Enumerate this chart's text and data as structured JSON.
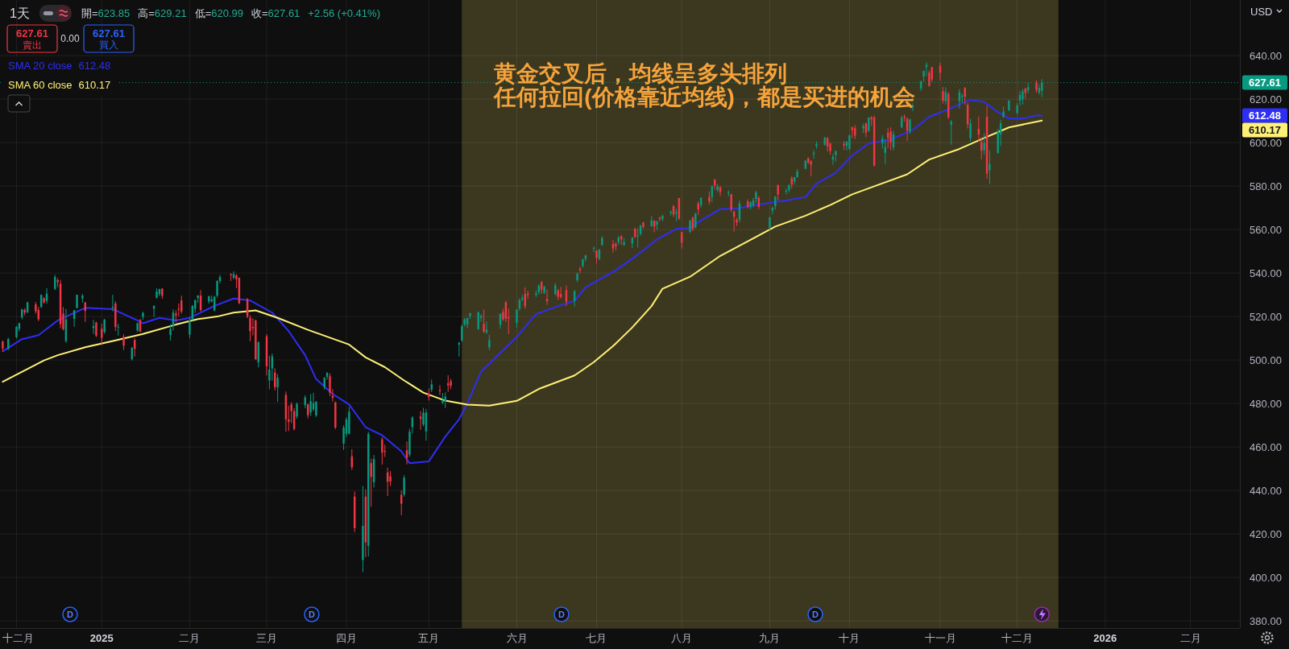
{
  "chart_data": {
    "type": "candlestick",
    "title": "1天",
    "x": [
      "2024-11-27",
      "2024-11-29",
      "2024-12-02",
      "2024-12-03",
      "2024-12-04",
      "2024-12-05",
      "2024-12-06",
      "2024-12-09",
      "2024-12-10",
      "2024-12-11",
      "2024-12-12",
      "2024-12-13",
      "2024-12-16",
      "2024-12-17",
      "2024-12-18",
      "2024-12-19",
      "2024-12-20",
      "2024-12-23",
      "2024-12-24",
      "2024-12-26",
      "2024-12-27",
      "2024-12-30",
      "2024-12-31",
      "2025-01-02",
      "2025-01-03",
      "2025-01-06",
      "2025-01-07",
      "2025-01-08",
      "2025-01-10",
      "2025-01-13",
      "2025-01-14",
      "2025-01-15",
      "2025-01-16",
      "2025-01-17",
      "2025-01-21",
      "2025-01-22",
      "2025-01-23",
      "2025-01-24",
      "2025-01-27",
      "2025-01-28",
      "2025-01-29",
      "2025-01-30",
      "2025-01-31",
      "2025-02-03",
      "2025-02-04",
      "2025-02-05",
      "2025-02-06",
      "2025-02-07",
      "2025-02-10",
      "2025-02-11",
      "2025-02-12",
      "2025-02-13",
      "2025-02-14",
      "2025-02-18",
      "2025-02-19",
      "2025-02-20",
      "2025-02-21",
      "2025-02-24",
      "2025-02-25",
      "2025-02-26",
      "2025-02-27",
      "2025-02-28",
      "2025-03-03",
      "2025-03-04",
      "2025-03-05",
      "2025-03-06",
      "2025-03-07",
      "2025-03-10",
      "2025-03-11",
      "2025-03-12",
      "2025-03-13",
      "2025-03-14",
      "2025-03-17",
      "2025-03-18",
      "2025-03-19",
      "2025-03-20",
      "2025-03-21",
      "2025-03-24",
      "2025-03-25",
      "2025-03-26",
      "2025-03-27",
      "2025-03-28",
      "2025-03-31",
      "2025-04-01",
      "2025-04-02",
      "2025-04-03",
      "2025-04-04",
      "2025-04-07",
      "2025-04-08",
      "2025-04-09",
      "2025-04-10",
      "2025-04-11",
      "2025-04-14",
      "2025-04-15",
      "2025-04-16",
      "2025-04-17",
      "2025-04-21",
      "2025-04-22",
      "2025-04-23",
      "2025-04-24",
      "2025-04-25",
      "2025-04-28",
      "2025-04-29",
      "2025-04-30",
      "2025-05-01",
      "2025-05-02",
      "2025-05-05",
      "2025-05-06",
      "2025-05-07",
      "2025-05-08",
      "2025-05-09",
      "2025-05-12",
      "2025-05-13",
      "2025-05-14",
      "2025-05-15",
      "2025-05-16",
      "2025-05-19",
      "2025-05-20",
      "2025-05-21",
      "2025-05-22",
      "2025-05-23",
      "2025-05-27",
      "2025-05-28",
      "2025-05-29",
      "2025-05-30",
      "2025-06-02",
      "2025-06-03",
      "2025-06-04",
      "2025-06-05",
      "2025-06-06",
      "2025-06-09",
      "2025-06-10",
      "2025-06-11",
      "2025-06-12",
      "2025-06-13",
      "2025-06-16",
      "2025-06-17",
      "2025-06-18",
      "2025-06-20",
      "2025-06-23",
      "2025-06-24",
      "2025-06-25",
      "2025-06-26",
      "2025-06-27",
      "2025-06-30",
      "2025-07-01",
      "2025-07-02",
      "2025-07-03",
      "2025-07-07",
      "2025-07-08",
      "2025-07-09",
      "2025-07-10",
      "2025-07-11",
      "2025-07-14",
      "2025-07-15",
      "2025-07-16",
      "2025-07-17",
      "2025-07-18",
      "2025-07-21",
      "2025-07-22",
      "2025-07-23",
      "2025-07-24",
      "2025-07-25",
      "2025-07-28",
      "2025-07-29",
      "2025-07-30",
      "2025-07-31",
      "2025-08-01",
      "2025-08-04",
      "2025-08-05",
      "2025-08-06",
      "2025-08-07",
      "2025-08-08",
      "2025-08-11",
      "2025-08-12",
      "2025-08-13",
      "2025-08-14",
      "2025-08-15",
      "2025-08-18",
      "2025-08-19",
      "2025-08-20",
      "2025-08-21",
      "2025-08-22",
      "2025-08-25",
      "2025-08-26",
      "2025-08-27",
      "2025-08-28",
      "2025-08-29",
      "2025-09-02",
      "2025-09-03",
      "2025-09-04",
      "2025-09-05",
      "2025-09-08",
      "2025-09-09",
      "2025-09-10",
      "2025-09-11",
      "2025-09-12",
      "2025-09-15",
      "2025-09-16",
      "2025-09-17",
      "2025-09-18",
      "2025-09-19",
      "2025-09-22",
      "2025-09-23",
      "2025-09-24",
      "2025-09-25",
      "2025-09-26",
      "2025-09-29",
      "2025-09-30",
      "2025-10-01",
      "2025-10-02",
      "2025-10-03",
      "2025-10-06",
      "2025-10-07",
      "2025-10-08",
      "2025-10-09",
      "2025-10-10",
      "2025-10-13",
      "2025-10-14",
      "2025-10-15",
      "2025-10-16",
      "2025-10-17",
      "2025-10-20",
      "2025-10-21",
      "2025-10-22",
      "2025-10-23",
      "2025-10-24",
      "2025-10-27",
      "2025-10-28",
      "2025-10-29",
      "2025-10-30",
      "2025-10-31",
      "2025-11-03",
      "2025-11-04",
      "2025-11-05",
      "2025-11-06",
      "2025-11-07",
      "2025-11-10",
      "2025-11-11",
      "2025-11-12",
      "2025-11-13",
      "2025-11-14",
      "2025-11-17",
      "2025-11-18",
      "2025-11-19",
      "2025-11-20",
      "2025-11-21",
      "2025-11-24",
      "2025-11-25",
      "2025-11-26",
      "2025-11-28",
      "2025-12-01",
      "2025-12-02",
      "2025-12-03",
      "2025-12-04",
      "2025-12-05",
      "2025-12-08",
      "2025-12-09",
      "2025-12-10"
    ],
    "ohlc": [
      [
        508.5,
        509.0,
        503.9,
        505.3
      ],
      [
        505.1,
        510.2,
        504.6,
        509.7
      ],
      [
        510.5,
        515.6,
        509.9,
        515.3
      ],
      [
        514.3,
        517.2,
        513.2,
        516.9
      ],
      [
        519.6,
        523.6,
        518.7,
        523.3
      ],
      [
        523.0,
        523.8,
        520.6,
        521.8
      ],
      [
        522.0,
        526.9,
        521.5,
        526.5
      ],
      [
        525.6,
        526.7,
        521.3,
        522.4
      ],
      [
        523.1,
        524.5,
        517.9,
        518.7
      ],
      [
        524.4,
        530.2,
        523.9,
        529.9
      ],
      [
        528.4,
        529.0,
        526.0,
        526.5
      ],
      [
        527.2,
        533.1,
        525.9,
        530.5
      ],
      [
        532.7,
        539.2,
        532.2,
        538.2
      ],
      [
        536.7,
        537.6,
        533.6,
        535.8
      ],
      [
        535.1,
        536.9,
        514.6,
        516.5
      ],
      [
        521.3,
        524.4,
        513.6,
        514.2
      ],
      [
        508.7,
        523.5,
        507.9,
        518.7
      ],
      [
        518.9,
        523.0,
        515.3,
        522.9
      ],
      [
        524.0,
        530.0,
        523.7,
        530.0
      ],
      [
        528.3,
        530.4,
        526.4,
        529.6
      ],
      [
        526.5,
        526.7,
        517.5,
        522.6
      ],
      [
        514.7,
        518.5,
        512.0,
        515.6
      ],
      [
        517.2,
        517.6,
        510.5,
        511.2
      ],
      [
        514.4,
        516.8,
        506.8,
        510.2
      ],
      [
        512.9,
        518.9,
        512.0,
        518.6
      ],
      [
        524.0,
        530.0,
        522.4,
        524.5
      ],
      [
        526.0,
        527.0,
        513.3,
        515.2
      ],
      [
        515.0,
        516.7,
        511.2,
        515.3
      ],
      [
        510.7,
        511.8,
        504.6,
        506.6
      ],
      [
        500.4,
        506.0,
        499.8,
        505.6
      ],
      [
        509.2,
        509.9,
        501.6,
        505.1
      ],
      [
        513.6,
        517.3,
        512.8,
        516.9
      ],
      [
        518.4,
        518.9,
        512.8,
        513.1
      ],
      [
        519.8,
        522.2,
        518.5,
        521.7
      ],
      [
        523.6,
        525.2,
        519.8,
        524.8
      ],
      [
        528.6,
        533.0,
        528.3,
        531.5
      ],
      [
        530.3,
        532.8,
        529.3,
        532.6
      ],
      [
        532.8,
        533.1,
        528.2,
        529.6
      ],
      [
        511.5,
        516.3,
        509.0,
        514.2
      ],
      [
        515.8,
        523.3,
        513.6,
        521.8
      ],
      [
        521.4,
        522.9,
        517.3,
        520.5
      ],
      [
        523.6,
        526.0,
        520.0,
        523.1
      ],
      [
        527.4,
        529.6,
        521.3,
        522.3
      ],
      [
        511.7,
        519.7,
        510.0,
        518.1
      ],
      [
        518.6,
        525.3,
        518.1,
        524.9
      ],
      [
        523.6,
        527.7,
        521.7,
        527.6
      ],
      [
        528.5,
        529.8,
        526.3,
        529.7
      ],
      [
        529.6,
        532.2,
        522.4,
        522.9
      ],
      [
        526.9,
        529.6,
        525.9,
        529.3
      ],
      [
        527.0,
        529.7,
        526.5,
        527.9
      ],
      [
        522.8,
        529.5,
        522.4,
        529.1
      ],
      [
        529.6,
        536.6,
        528.7,
        536.4
      ],
      [
        536.3,
        539.1,
        535.4,
        538.2
      ],
      [
        539.6,
        539.8,
        536.4,
        539.1
      ],
      [
        537.8,
        540.8,
        537.1,
        539.5
      ],
      [
        538.9,
        539.5,
        533.1,
        537.2
      ],
      [
        537.8,
        538.0,
        525.7,
        526.1
      ],
      [
        528.0,
        528.5,
        519.2,
        519.9
      ],
      [
        519.4,
        520.6,
        508.6,
        513.3
      ],
      [
        515.2,
        519.2,
        511.3,
        514.6
      ],
      [
        518.2,
        518.6,
        500.2,
        500.3
      ],
      [
        499.0,
        508.6,
        496.6,
        508.2
      ],
      [
        510.9,
        511.9,
        492.9,
        497.1
      ],
      [
        490.6,
        502.0,
        486.6,
        495.6
      ],
      [
        496.1,
        503.0,
        490.5,
        501.7
      ],
      [
        494.2,
        496.2,
        486.0,
        487.5
      ],
      [
        487.5,
        493.5,
        480.7,
        491.8
      ],
      [
        484.0,
        485.5,
        467.0,
        472.7
      ],
      [
        472.7,
        479.0,
        467.3,
        471.6
      ],
      [
        479.6,
        480.6,
        471.0,
        476.5
      ],
      [
        476.4,
        477.8,
        467.6,
        468.3
      ],
      [
        474.0,
        480.5,
        473.0,
        479.8
      ],
      [
        479.3,
        483.8,
        477.9,
        482.8
      ],
      [
        479.6,
        479.9,
        473.1,
        474.6
      ],
      [
        475.9,
        484.4,
        474.3,
        481.1
      ],
      [
        477.3,
        484.9,
        476.4,
        480.2
      ],
      [
        474.5,
        481.1,
        473.8,
        480.8
      ],
      [
        487.6,
        492.2,
        486.4,
        491.8
      ],
      [
        492.3,
        494.4,
        491.0,
        494.1
      ],
      [
        492.5,
        493.9,
        483.4,
        485.0
      ],
      [
        483.4,
        486.6,
        480.9,
        482.6
      ],
      [
        480.5,
        480.9,
        468.2,
        468.9
      ],
      [
        461.6,
        470.0,
        458.6,
        468.9
      ],
      [
        466.0,
        473.7,
        464.6,
        472.7
      ],
      [
        466.2,
        478.4,
        465.7,
        476.2
      ],
      [
        455.7,
        459.0,
        449.4,
        450.7
      ],
      [
        437.2,
        439.5,
        420.9,
        422.7
      ],
      [
        408.0,
        442.1,
        402.4,
        423.7
      ],
      [
        437.2,
        440.5,
        409.2,
        416.1
      ],
      [
        414.5,
        467.0,
        409.6,
        466.0
      ],
      [
        452.6,
        454.7,
        432.5,
        446.2
      ],
      [
        443.8,
        456.3,
        441.3,
        454.4
      ],
      [
        463.5,
        464.5,
        451.9,
        457.4
      ],
      [
        458.2,
        461.0,
        455.4,
        457.7
      ],
      [
        448.3,
        450.5,
        437.5,
        444.0
      ],
      [
        446.5,
        448.9,
        442.0,
        444.1
      ],
      [
        438.0,
        440.0,
        428.6,
        433.9
      ],
      [
        438.2,
        447.0,
        437.2,
        445.9
      ],
      [
        458.5,
        462.5,
        452.0,
        455.0
      ],
      [
        456.5,
        468.4,
        455.5,
        467.0
      ],
      [
        469.1,
        474.2,
        466.2,
        473.5
      ],
      [
        474.0,
        476.5,
        467.9,
        472.9
      ],
      [
        470.3,
        478.0,
        469.5,
        475.8
      ],
      [
        467.2,
        477.5,
        462.9,
        475.8
      ],
      [
        484.5,
        486.9,
        481.4,
        483.0
      ],
      [
        486.3,
        491.0,
        485.2,
        488.8
      ],
      [
        486.2,
        488.4,
        483.9,
        485.7
      ],
      [
        480.3,
        484.8,
        479.8,
        481.3
      ],
      [
        481.0,
        485.1,
        477.9,
        483.2
      ],
      [
        489.3,
        493.0,
        485.3,
        488.3
      ],
      [
        490.3,
        491.3,
        486.6,
        488.1
      ],
      [
        507.1,
        508.3,
        501.6,
        507.9
      ],
      [
        509.0,
        516.4,
        508.3,
        515.6
      ],
      [
        516.3,
        519.2,
        515.5,
        518.7
      ],
      [
        516.4,
        519.4,
        514.7,
        519.3
      ],
      [
        520.3,
        521.7,
        518.9,
        521.5
      ],
      [
        514.2,
        522.3,
        513.9,
        522.0
      ],
      [
        519.4,
        521.0,
        517.6,
        520.3
      ],
      [
        516.6,
        523.2,
        512.4,
        513.0
      ],
      [
        512.7,
        517.8,
        512.0,
        514.0
      ],
      [
        505.8,
        511.6,
        504.5,
        509.2
      ],
      [
        516.2,
        521.5,
        514.4,
        521.2
      ],
      [
        522.1,
        523.6,
        518.0,
        518.7
      ],
      [
        526.6,
        527.2,
        517.4,
        519.1
      ],
      [
        519.6,
        523.6,
        511.9,
        519.1
      ],
      [
        517.1,
        523.4,
        514.9,
        523.2
      ],
      [
        523.6,
        528.3,
        522.7,
        527.6
      ],
      [
        527.9,
        529.8,
        527.1,
        528.5
      ],
      [
        530.3,
        533.4,
        523.6,
        524.8
      ],
      [
        530.4,
        531.8,
        528.2,
        529.9
      ],
      [
        529.9,
        532.0,
        529.0,
        530.7
      ],
      [
        531.2,
        534.9,
        530.1,
        534.2
      ],
      [
        535.8,
        536.4,
        530.5,
        532.4
      ],
      [
        530.9,
        534.1,
        530.4,
        533.7
      ],
      [
        528.0,
        532.4,
        525.4,
        527.0
      ],
      [
        530.3,
        535.4,
        529.7,
        534.3
      ],
      [
        532.0,
        532.7,
        527.7,
        529.1
      ],
      [
        530.3,
        533.6,
        528.3,
        529.0
      ],
      [
        532.1,
        534.2,
        524.9,
        526.8
      ],
      [
        527.2,
        532.2,
        524.7,
        531.7
      ],
      [
        536.7,
        540.3,
        535.9,
        539.8
      ],
      [
        542.0,
        542.9,
        539.9,
        541.2
      ],
      [
        543.2,
        546.6,
        542.5,
        546.2
      ],
      [
        546.5,
        548.4,
        545.4,
        548.1
      ],
      [
        551.2,
        552.2,
        549.6,
        551.6
      ],
      [
        550.2,
        550.7,
        544.3,
        547.0
      ],
      [
        546.5,
        551.1,
        545.8,
        550.8
      ],
      [
        553.0,
        556.9,
        552.4,
        556.2
      ],
      [
        553.4,
        555.2,
        549.4,
        551.3
      ],
      [
        553.4,
        554.3,
        550.5,
        552.3
      ],
      [
        554.2,
        557.2,
        553.1,
        556.3
      ],
      [
        556.9,
        557.5,
        552.9,
        555.5
      ],
      [
        553.0,
        556.0,
        552.4,
        554.2
      ],
      [
        553.6,
        556.7,
        551.5,
        556.2
      ],
      [
        560.4,
        560.9,
        556.0,
        556.7
      ],
      [
        557.1,
        560.5,
        551.8,
        557.3
      ],
      [
        557.9,
        562.2,
        557.2,
        561.8
      ],
      [
        563.2,
        563.6,
        560.5,
        561.3
      ],
      [
        561.6,
        566.2,
        561.3,
        564.2
      ],
      [
        564.0,
        564.3,
        558.7,
        561.3
      ],
      [
        562.2,
        564.0,
        559.8,
        563.8
      ],
      [
        565.5,
        566.0,
        563.8,
        565.0
      ],
      [
        564.7,
        566.8,
        563.9,
        566.4
      ],
      [
        567.6,
        568.8,
        566.5,
        568.1
      ],
      [
        570.8,
        571.3,
        565.8,
        566.9
      ],
      [
        567.4,
        569.6,
        563.9,
        568.0
      ],
      [
        574.5,
        574.6,
        564.5,
        565.0
      ],
      [
        558.8,
        559.0,
        551.3,
        553.9
      ],
      [
        559.0,
        564.4,
        558.4,
        564.1
      ],
      [
        565.5,
        566.0,
        559.3,
        560.3
      ],
      [
        561.0,
        567.8,
        560.6,
        567.3
      ],
      [
        572.0,
        573.0,
        566.7,
        569.2
      ],
      [
        571.3,
        574.7,
        570.2,
        574.6
      ],
      [
        575.0,
        577.5,
        571.5,
        572.9
      ],
      [
        575.0,
        580.2,
        572.6,
        580.1
      ],
      [
        583.0,
        583.3,
        578.3,
        580.3
      ],
      [
        578.2,
        581.0,
        577.3,
        579.9
      ],
      [
        579.5,
        580.0,
        575.4,
        577.3
      ],
      [
        577.0,
        578.0,
        575.3,
        577.1
      ],
      [
        576.2,
        576.5,
        568.1,
        569.3
      ],
      [
        568.2,
        568.7,
        559.1,
        565.9
      ],
      [
        564.5,
        565.3,
        561.7,
        563.3
      ],
      [
        564.5,
        573.5,
        563.3,
        572.0
      ],
      [
        572.9,
        573.9,
        569.8,
        570.3
      ],
      [
        570.4,
        573.0,
        569.3,
        572.6
      ],
      [
        571.1,
        574.5,
        570.3,
        573.5
      ],
      [
        574.1,
        577.9,
        572.3,
        577.1
      ],
      [
        574.6,
        575.4,
        569.3,
        570.4
      ],
      [
        560.8,
        566.0,
        559.5,
        565.6
      ],
      [
        568.8,
        570.5,
        567.0,
        570.1
      ],
      [
        570.7,
        575.4,
        569.2,
        575.2
      ],
      [
        580.5,
        580.6,
        573.4,
        576.1
      ],
      [
        577.4,
        579.0,
        576.2,
        577.9
      ],
      [
        578.2,
        580.7,
        577.0,
        580.5
      ],
      [
        583.6,
        584.6,
        578.9,
        580.7
      ],
      [
        582.0,
        584.2,
        580.7,
        584.1
      ],
      [
        584.2,
        587.9,
        583.8,
        586.7
      ],
      [
        588.0,
        591.9,
        587.7,
        591.7
      ],
      [
        592.8,
        593.2,
        590.1,
        590.8
      ],
      [
        591.4,
        592.0,
        584.5,
        589.9
      ],
      [
        594.7,
        596.5,
        592.5,
        595.3
      ],
      [
        598.4,
        600.6,
        597.2,
        599.4
      ],
      [
        599.0,
        602.7,
        598.6,
        602.2
      ],
      [
        602.1,
        602.6,
        595.9,
        598.2
      ],
      [
        599.6,
        600.0,
        594.5,
        596.1
      ],
      [
        592.2,
        594.8,
        589.8,
        593.5
      ],
      [
        594.3,
        596.4,
        591.4,
        596.0
      ],
      [
        599.5,
        600.7,
        596.6,
        598.7
      ],
      [
        598.4,
        600.7,
        596.5,
        600.4
      ],
      [
        597.1,
        603.8,
        596.4,
        603.3
      ],
      [
        607.0,
        607.4,
        602.1,
        605.7
      ],
      [
        606.6,
        608.1,
        601.7,
        603.2
      ],
      [
        606.6,
        608.8,
        604.5,
        607.7
      ],
      [
        608.9,
        609.2,
        602.5,
        604.5
      ],
      [
        605.4,
        611.7,
        605.0,
        611.4
      ],
      [
        611.6,
        612.3,
        607.7,
        610.7
      ],
      [
        611.6,
        612.5,
        589.0,
        589.5
      ],
      [
        599.6,
        603.4,
        597.3,
        602.0
      ],
      [
        595.3,
        601.5,
        590.0,
        598.0
      ],
      [
        604.5,
        606.7,
        597.6,
        602.2
      ],
      [
        605.1,
        607.0,
        596.6,
        600.0
      ],
      [
        597.8,
        605.4,
        596.4,
        603.9
      ],
      [
        607.0,
        612.4,
        606.5,
        611.5
      ],
      [
        611.9,
        613.0,
        609.5,
        611.4
      ],
      [
        611.0,
        611.5,
        600.8,
        605.5
      ],
      [
        605.1,
        611.0,
        604.0,
        610.6
      ],
      [
        616.2,
        618.0,
        614.5,
        617.1
      ],
      [
        624.9,
        628.5,
        623.7,
        628.1
      ],
      [
        630.4,
        633.2,
        628.0,
        632.9
      ],
      [
        634.7,
        637.0,
        630.5,
        635.8
      ],
      [
        632.2,
        633.2,
        625.7,
        626.1
      ],
      [
        634.7,
        634.9,
        627.9,
        629.1
      ],
      [
        635.3,
        636.8,
        628.6,
        632.1
      ],
      [
        623.6,
        625.6,
        618.0,
        619.3
      ],
      [
        619.0,
        625.5,
        617.5,
        623.3
      ],
      [
        622.4,
        623.3,
        610.8,
        611.7
      ],
      [
        608.3,
        610.4,
        599.0,
        609.7
      ],
      [
        619.0,
        624.6,
        615.6,
        623.2
      ],
      [
        621.1,
        622.4,
        618.3,
        621.6
      ],
      [
        625.1,
        625.6,
        617.5,
        621.1
      ],
      [
        617.4,
        618.3,
        606.5,
        608.4
      ],
      [
        602.0,
        611.0,
        600.6,
        608.9
      ],
      [
        606.3,
        612.0,
        600.7,
        603.7
      ],
      [
        600.4,
        602.4,
        592.3,
        596.3
      ],
      [
        596.5,
        604.4,
        594.3,
        599.9
      ],
      [
        611.9,
        617.0,
        583.4,
        585.7
      ],
      [
        587.3,
        596.4,
        580.9,
        590.1
      ],
      [
        595.2,
        606.3,
        595.0,
        605.2
      ],
      [
        603.8,
        610.5,
        598.4,
        608.9
      ],
      [
        611.9,
        616.6,
        611.3,
        614.3
      ],
      [
        614.9,
        619.6,
        614.5,
        619.3
      ],
      [
        613.7,
        618.2,
        612.9,
        617.1
      ],
      [
        619.3,
        623.8,
        617.1,
        622.0
      ],
      [
        619.9,
        624.6,
        617.6,
        623.5
      ],
      [
        624.8,
        625.2,
        620.2,
        622.9
      ],
      [
        624.2,
        627.4,
        622.7,
        625.5
      ],
      [
        627.5,
        628.8,
        622.9,
        624.3
      ],
      [
        623.0,
        626.8,
        622.1,
        625.1
      ],
      [
        623.85,
        629.21,
        620.99,
        627.61
      ]
    ],
    "series": [
      {
        "type": "line",
        "name": "SMA 20 close",
        "color": "#2e2ef5",
        "x": [
          "2024-11-27",
          "2024-12-04",
          "2024-12-10",
          "2024-12-17",
          "2024-12-27",
          "2025-01-06",
          "2025-01-15",
          "2025-01-17",
          "2025-01-23",
          "2025-01-29",
          "2025-02-03",
          "2025-02-06",
          "2025-02-12",
          "2025-02-19",
          "2025-02-21",
          "2025-02-25",
          "2025-03-05",
          "2025-03-11",
          "2025-03-17",
          "2025-03-21",
          "2025-03-27",
          "2025-04-02",
          "2025-04-08",
          "2025-04-14",
          "2025-04-21",
          "2025-04-24",
          "2025-05-01",
          "2025-05-07",
          "2025-05-12",
          "2025-05-15",
          "2025-05-20",
          "2025-05-27",
          "2025-06-02",
          "2025-06-09",
          "2025-06-17",
          "2025-06-23",
          "2025-06-27",
          "2025-07-08",
          "2025-07-15",
          "2025-07-23",
          "2025-07-30",
          "2025-08-04",
          "2025-08-06",
          "2025-08-15",
          "2025-08-21",
          "2025-08-28",
          "2025-09-08",
          "2025-09-15",
          "2025-09-19",
          "2025-09-26",
          "2025-10-02",
          "2025-10-08",
          "2025-10-16",
          "2025-10-24",
          "2025-10-30",
          "2025-11-05",
          "2025-11-12",
          "2025-11-14",
          "2025-11-19",
          "2025-11-24",
          "2025-11-28",
          "2025-12-03",
          "2025-12-08",
          "2025-12-10"
        ],
        "values": [
          504.0,
          509.6,
          511.4,
          518.2,
          524.0,
          523.4,
          518.2,
          516.9,
          519.4,
          518.2,
          519.4,
          521.2,
          524.9,
          528.3,
          528.0,
          527.4,
          521.8,
          513.3,
          502.2,
          491.2,
          484.4,
          479.5,
          469.1,
          465.4,
          458.0,
          452.5,
          453.4,
          464.8,
          472.8,
          480.1,
          494.7,
          503.3,
          510.7,
          521.1,
          524.8,
          527.2,
          533.4,
          541.3,
          547.5,
          555.5,
          560.4,
          560.7,
          562.7,
          569.4,
          569.7,
          571.3,
          573.4,
          575.0,
          581.1,
          586.1,
          594.1,
          599.6,
          601.5,
          605.8,
          611.9,
          614.8,
          618.7,
          619.7,
          618.7,
          614.0,
          611.1,
          611.1,
          612.5,
          612.48
        ]
      },
      {
        "type": "line",
        "name": "SMA 60 close",
        "color": "#fff176",
        "x": [
          "2024-11-27",
          "2024-12-12",
          "2024-12-17",
          "2024-12-27",
          "2025-01-07",
          "2025-01-17",
          "2025-01-29",
          "2025-02-06",
          "2025-02-13",
          "2025-02-19",
          "2025-02-27",
          "2025-03-07",
          "2025-03-18",
          "2025-04-02",
          "2025-04-08",
          "2025-04-15",
          "2025-04-22",
          "2025-04-29",
          "2025-05-07",
          "2025-05-15",
          "2025-05-23",
          "2025-06-02",
          "2025-06-10",
          "2025-06-23",
          "2025-06-30",
          "2025-07-07",
          "2025-07-14",
          "2025-07-21",
          "2025-07-25",
          "2025-08-04",
          "2025-08-15",
          "2025-08-26",
          "2025-09-04",
          "2025-09-15",
          "2025-09-24",
          "2025-10-02",
          "2025-10-10",
          "2025-10-22",
          "2025-10-30",
          "2025-11-10",
          "2025-11-19",
          "2025-11-28",
          "2025-12-10"
        ],
        "values": [
          490.0,
          499.8,
          502.2,
          505.9,
          509.0,
          512.0,
          516.3,
          518.8,
          520.0,
          521.8,
          522.8,
          519.4,
          513.9,
          507.1,
          501.2,
          496.7,
          490.6,
          485.0,
          481.3,
          479.5,
          479.0,
          481.2,
          486.7,
          492.9,
          499.0,
          506.4,
          515.0,
          524.8,
          532.8,
          538.3,
          547.9,
          555.3,
          561.4,
          566.4,
          571.3,
          576.2,
          579.9,
          585.4,
          592.2,
          597.1,
          602.1,
          607.0,
          610.17
        ]
      }
    ],
    "xlim": [
      "2024-11-26",
      "2026-02-20"
    ],
    "xticks": [
      {
        "value": "2024-12-02",
        "label": "十二月"
      },
      {
        "value": "2025-01-02",
        "label": "2025"
      },
      {
        "value": "2025-02-03",
        "label": "二月"
      },
      {
        "value": "2025-03-03",
        "label": "三月"
      },
      {
        "value": "2025-04-01",
        "label": "四月"
      },
      {
        "value": "2025-05-01",
        "label": "五月"
      },
      {
        "value": "2025-06-02",
        "label": "六月"
      },
      {
        "value": "2025-07-01",
        "label": "七月"
      },
      {
        "value": "2025-08-01",
        "label": "八月"
      },
      {
        "value": "2025-09-02",
        "label": "九月"
      },
      {
        "value": "2025-10-01",
        "label": "十月"
      },
      {
        "value": "2025-11-03",
        "label": "十一月"
      },
      {
        "value": "2025-12-01",
        "label": "十二月"
      },
      {
        "value": "2026-01-02",
        "label": "2026"
      },
      {
        "value": "2026-02-02",
        "label": "二月"
      }
    ],
    "ylim": [
      376.7,
      665.6
    ],
    "yticks": [
      {
        "value": 380,
        "label": "380.00"
      },
      {
        "value": 400,
        "label": "400.00"
      },
      {
        "value": 420,
        "label": "420.00"
      },
      {
        "value": 440,
        "label": "440.00"
      },
      {
        "value": 460,
        "label": "460.00"
      },
      {
        "value": 480,
        "label": "480.00"
      },
      {
        "value": 500,
        "label": "500.00"
      },
      {
        "value": 520,
        "label": "520.00"
      },
      {
        "value": 540,
        "label": "540.00"
      },
      {
        "value": 560,
        "label": "560.00"
      },
      {
        "value": 580,
        "label": "580.00"
      },
      {
        "value": 600,
        "label": "600.00"
      },
      {
        "value": 620,
        "label": "620.00"
      },
      {
        "value": 640,
        "label": "640.00"
      }
    ],
    "grid": true,
    "legend": "top left",
    "ref_lines": [
      {
        "axis": "y",
        "value": 627.61,
        "label": "627.61",
        "color": "#089981",
        "line_style": "dotted"
      }
    ],
    "bands": [
      {
        "axis": "x",
        "from": "2025-05-13",
        "to": "2025-12-16",
        "color": "#3c3820"
      }
    ],
    "annotations": [
      "開=623.85",
      "高=629.21",
      "低=620.99",
      "收=627.61",
      "+2.56 (+0.41%)",
      "627.61\n賣出",
      "0.00",
      "627.61\n買入",
      "USD",
      "D",
      "D",
      "D",
      "D",
      "黄金交叉后，均线呈多头排列",
      "任何拉回(价格靠近均线)，都是买进的机会",
      "612.48",
      "610.17",
      "612.48",
      "610.17"
    ]
  }
}
